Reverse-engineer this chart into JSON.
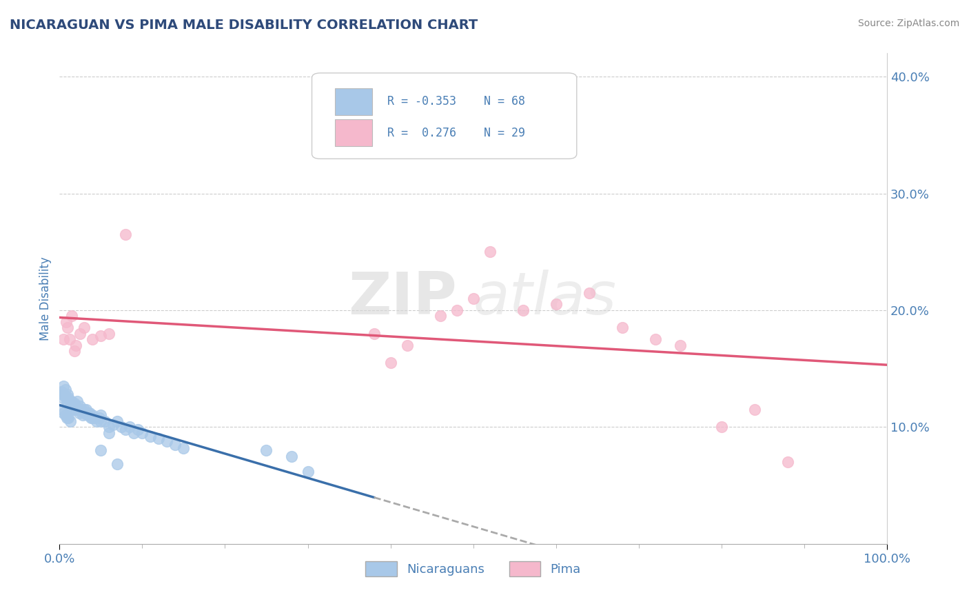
{
  "title": "NICARAGUAN VS PIMA MALE DISABILITY CORRELATION CHART",
  "source": "Source: ZipAtlas.com",
  "ylabel": "Male Disability",
  "legend_nicaraguan_label": "Nicaraguans",
  "legend_pima_label": "Pima",
  "nicaraguan_R": -0.353,
  "nicaraguan_N": 68,
  "pima_R": 0.276,
  "pima_N": 29,
  "nicaraguan_color": "#a8c8e8",
  "pima_color": "#f5b8cc",
  "nicaraguan_line_color": "#3a6faa",
  "pima_line_color": "#e05878",
  "trend_dashed_color": "#aaaaaa",
  "background_color": "#ffffff",
  "grid_color": "#cccccc",
  "title_color": "#2e4a7a",
  "axis_label_color": "#4a7fb5",
  "xlim": [
    0.0,
    1.0
  ],
  "ylim": [
    0.0,
    0.42
  ],
  "ytick_values": [
    0.1,
    0.2,
    0.3,
    0.4
  ],
  "watermark_zip": "ZIP",
  "watermark_atlas": "atlas",
  "nicaraguan_x": [
    0.002,
    0.003,
    0.004,
    0.005,
    0.006,
    0.007,
    0.008,
    0.009,
    0.01,
    0.011,
    0.012,
    0.013,
    0.014,
    0.015,
    0.016,
    0.017,
    0.018,
    0.019,
    0.02,
    0.022,
    0.024,
    0.026,
    0.028,
    0.03,
    0.032,
    0.034,
    0.036,
    0.038,
    0.04,
    0.042,
    0.045,
    0.048,
    0.05,
    0.055,
    0.06,
    0.065,
    0.07,
    0.075,
    0.08,
    0.085,
    0.09,
    0.095,
    0.1,
    0.11,
    0.12,
    0.13,
    0.14,
    0.15,
    0.003,
    0.005,
    0.007,
    0.009,
    0.011,
    0.013,
    0.015,
    0.018,
    0.021,
    0.025,
    0.03,
    0.035,
    0.04,
    0.05,
    0.06,
    0.25,
    0.28,
    0.3,
    0.05,
    0.07
  ],
  "nicaraguan_y": [
    0.13,
    0.128,
    0.125,
    0.135,
    0.128,
    0.132,
    0.125,
    0.122,
    0.128,
    0.125,
    0.122,
    0.118,
    0.12,
    0.122,
    0.118,
    0.115,
    0.12,
    0.115,
    0.118,
    0.115,
    0.112,
    0.115,
    0.11,
    0.112,
    0.115,
    0.11,
    0.112,
    0.108,
    0.11,
    0.108,
    0.105,
    0.108,
    0.105,
    0.105,
    0.1,
    0.102,
    0.105,
    0.1,
    0.098,
    0.1,
    0.095,
    0.098,
    0.095,
    0.092,
    0.09,
    0.088,
    0.085,
    0.082,
    0.115,
    0.112,
    0.11,
    0.108,
    0.108,
    0.105,
    0.115,
    0.118,
    0.122,
    0.118,
    0.115,
    0.112,
    0.108,
    0.11,
    0.095,
    0.08,
    0.075,
    0.062,
    0.08,
    0.068
  ],
  "pima_x": [
    0.005,
    0.008,
    0.01,
    0.012,
    0.015,
    0.018,
    0.02,
    0.025,
    0.03,
    0.04,
    0.05,
    0.06,
    0.08,
    0.38,
    0.42,
    0.46,
    0.48,
    0.5,
    0.52,
    0.56,
    0.6,
    0.64,
    0.68,
    0.72,
    0.75,
    0.8,
    0.84,
    0.88,
    0.4
  ],
  "pima_y": [
    0.175,
    0.19,
    0.185,
    0.175,
    0.195,
    0.165,
    0.17,
    0.18,
    0.185,
    0.175,
    0.178,
    0.18,
    0.265,
    0.18,
    0.17,
    0.195,
    0.2,
    0.21,
    0.25,
    0.2,
    0.205,
    0.215,
    0.185,
    0.175,
    0.17,
    0.1,
    0.115,
    0.07,
    0.155
  ]
}
